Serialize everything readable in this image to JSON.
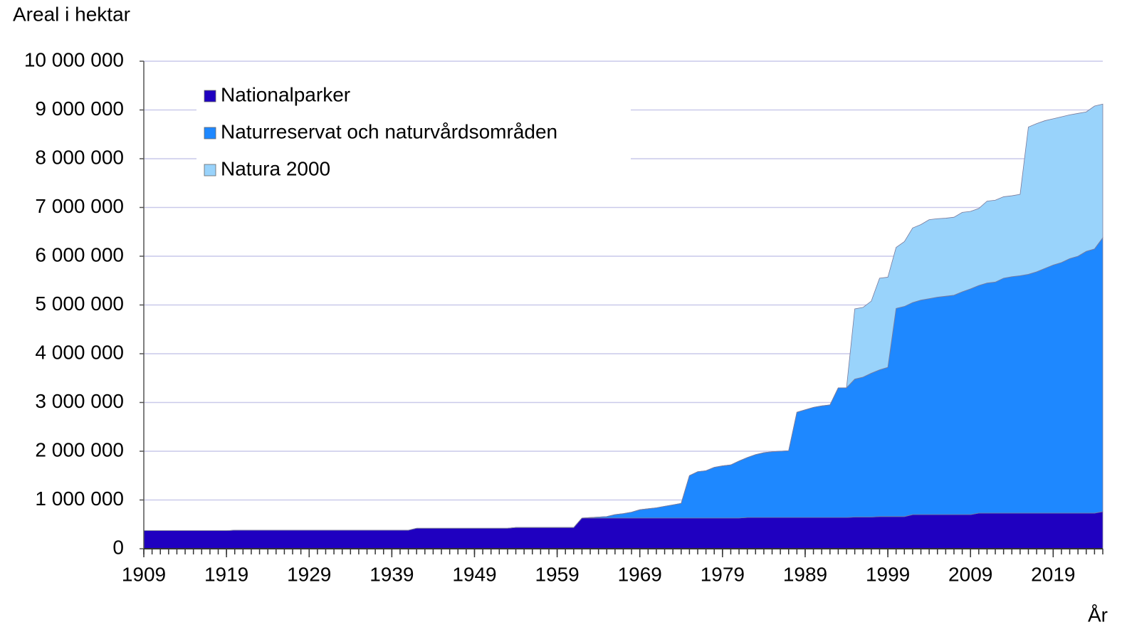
{
  "chart_data": {
    "type": "stacked_area",
    "y_label": "Areal i hektar",
    "x_label": "År",
    "xlim": [
      1909,
      2025
    ],
    "ylim": [
      0,
      10000000
    ],
    "xticks": [
      1909,
      1919,
      1929,
      1939,
      1949,
      1959,
      1969,
      1979,
      1989,
      1999,
      2009,
      2019
    ],
    "yticks": [
      0,
      {
        "value": 1000000,
        "label": "1 000 000"
      },
      {
        "value": 2000000,
        "label": "2 000 000"
      },
      {
        "value": 3000000,
        "label": "3 000 000"
      },
      {
        "value": 4000000,
        "label": "4 000 000"
      },
      {
        "value": 5000000,
        "label": "5 000 000"
      },
      {
        "value": 6000000,
        "label": "6 000 000"
      },
      {
        "value": 7000000,
        "label": "7 000 000"
      },
      {
        "value": 8000000,
        "label": "8 000 000"
      },
      {
        "value": 9000000,
        "label": "9 000 000"
      },
      {
        "value": 10000000,
        "label": "10 000 000"
      }
    ],
    "grid": true,
    "legend": "upper left",
    "x": [
      1909,
      1910,
      1911,
      1912,
      1913,
      1914,
      1915,
      1916,
      1917,
      1918,
      1919,
      1920,
      1921,
      1922,
      1923,
      1924,
      1925,
      1926,
      1927,
      1928,
      1929,
      1930,
      1931,
      1932,
      1933,
      1934,
      1935,
      1936,
      1937,
      1938,
      1939,
      1940,
      1941,
      1942,
      1943,
      1944,
      1945,
      1946,
      1947,
      1948,
      1949,
      1950,
      1951,
      1952,
      1953,
      1954,
      1955,
      1956,
      1957,
      1958,
      1959,
      1960,
      1961,
      1962,
      1963,
      1964,
      1965,
      1966,
      1967,
      1968,
      1969,
      1970,
      1971,
      1972,
      1973,
      1974,
      1975,
      1976,
      1977,
      1978,
      1979,
      1980,
      1981,
      1982,
      1983,
      1984,
      1985,
      1986,
      1987,
      1988,
      1989,
      1990,
      1991,
      1992,
      1993,
      1994,
      1995,
      1996,
      1997,
      1998,
      1999,
      2000,
      2001,
      2002,
      2003,
      2004,
      2005,
      2006,
      2007,
      2008,
      2009,
      2010,
      2011,
      2012,
      2013,
      2014,
      2015,
      2016,
      2017,
      2018,
      2019,
      2020,
      2021,
      2022,
      2023,
      2024,
      2025
    ],
    "series": [
      {
        "name": "Nationalparker",
        "color": "#1f00c0",
        "values": [
          370000,
          370000,
          370000,
          370000,
          370000,
          370000,
          370000,
          370000,
          370000,
          370000,
          370000,
          380000,
          380000,
          380000,
          380000,
          380000,
          380000,
          380000,
          380000,
          380000,
          380000,
          380000,
          380000,
          380000,
          380000,
          380000,
          380000,
          380000,
          380000,
          380000,
          380000,
          380000,
          380000,
          420000,
          420000,
          420000,
          420000,
          420000,
          420000,
          420000,
          420000,
          420000,
          420000,
          420000,
          420000,
          435000,
          435000,
          435000,
          435000,
          435000,
          435000,
          435000,
          435000,
          630000,
          630000,
          630000,
          630000,
          630000,
          630000,
          630000,
          630000,
          630000,
          630000,
          630000,
          630000,
          630000,
          630000,
          630000,
          630000,
          630000,
          630000,
          630000,
          630000,
          640000,
          640000,
          640000,
          640000,
          640000,
          640000,
          640000,
          640000,
          640000,
          640000,
          640000,
          640000,
          640000,
          650000,
          650000,
          650000,
          660000,
          660000,
          660000,
          660000,
          700000,
          700000,
          700000,
          700000,
          700000,
          700000,
          700000,
          700000,
          730000,
          730000,
          730000,
          730000,
          730000,
          730000,
          730000,
          730000,
          730000,
          730000,
          730000,
          730000,
          730000,
          730000,
          730000,
          760000
        ]
      },
      {
        "name": "Naturreservat och naturvårdsområden",
        "color": "#1e88ff",
        "values": [
          0,
          0,
          0,
          0,
          0,
          0,
          0,
          0,
          0,
          0,
          0,
          0,
          0,
          0,
          0,
          0,
          0,
          0,
          0,
          0,
          0,
          0,
          0,
          0,
          0,
          0,
          0,
          0,
          0,
          0,
          0,
          0,
          0,
          0,
          0,
          0,
          0,
          0,
          0,
          0,
          0,
          0,
          0,
          0,
          0,
          0,
          0,
          0,
          0,
          0,
          0,
          0,
          0,
          0,
          10000,
          20000,
          30000,
          70000,
          90000,
          120000,
          170000,
          190000,
          210000,
          240000,
          270000,
          300000,
          870000,
          950000,
          970000,
          1040000,
          1070000,
          1090000,
          1170000,
          1230000,
          1290000,
          1330000,
          1350000,
          1360000,
          1370000,
          2160000,
          2210000,
          2260000,
          2290000,
          2310000,
          2660000,
          2660000,
          2830000,
          2870000,
          2950000,
          3010000,
          3060000,
          4270000,
          4310000,
          4350000,
          4400000,
          4430000,
          4460000,
          4480000,
          4500000,
          4570000,
          4630000,
          4670000,
          4720000,
          4740000,
          4820000,
          4850000,
          4870000,
          4900000,
          4950000,
          5020000,
          5090000,
          5140000,
          5220000,
          5270000,
          5370000,
          5420000,
          5620000
        ]
      },
      {
        "name": "Natura 2000",
        "color": "#99d3fb",
        "values": [
          0,
          0,
          0,
          0,
          0,
          0,
          0,
          0,
          0,
          0,
          0,
          0,
          0,
          0,
          0,
          0,
          0,
          0,
          0,
          0,
          0,
          0,
          0,
          0,
          0,
          0,
          0,
          0,
          0,
          0,
          0,
          0,
          0,
          0,
          0,
          0,
          0,
          0,
          0,
          0,
          0,
          0,
          0,
          0,
          0,
          0,
          0,
          0,
          0,
          0,
          0,
          0,
          0,
          0,
          0,
          0,
          0,
          0,
          0,
          0,
          0,
          0,
          0,
          0,
          0,
          0,
          0,
          0,
          0,
          0,
          0,
          0,
          0,
          0,
          0,
          0,
          0,
          0,
          0,
          0,
          0,
          0,
          0,
          0,
          0,
          0,
          1440000,
          1430000,
          1480000,
          1880000,
          1850000,
          1250000,
          1330000,
          1530000,
          1550000,
          1620000,
          1610000,
          1600000,
          1600000,
          1630000,
          1590000,
          1580000,
          1680000,
          1680000,
          1670000,
          1660000,
          1670000,
          3020000,
          3040000,
          3030000,
          3000000,
          2990000,
          2950000,
          2930000,
          2860000,
          2930000,
          2740000
        ]
      }
    ]
  }
}
